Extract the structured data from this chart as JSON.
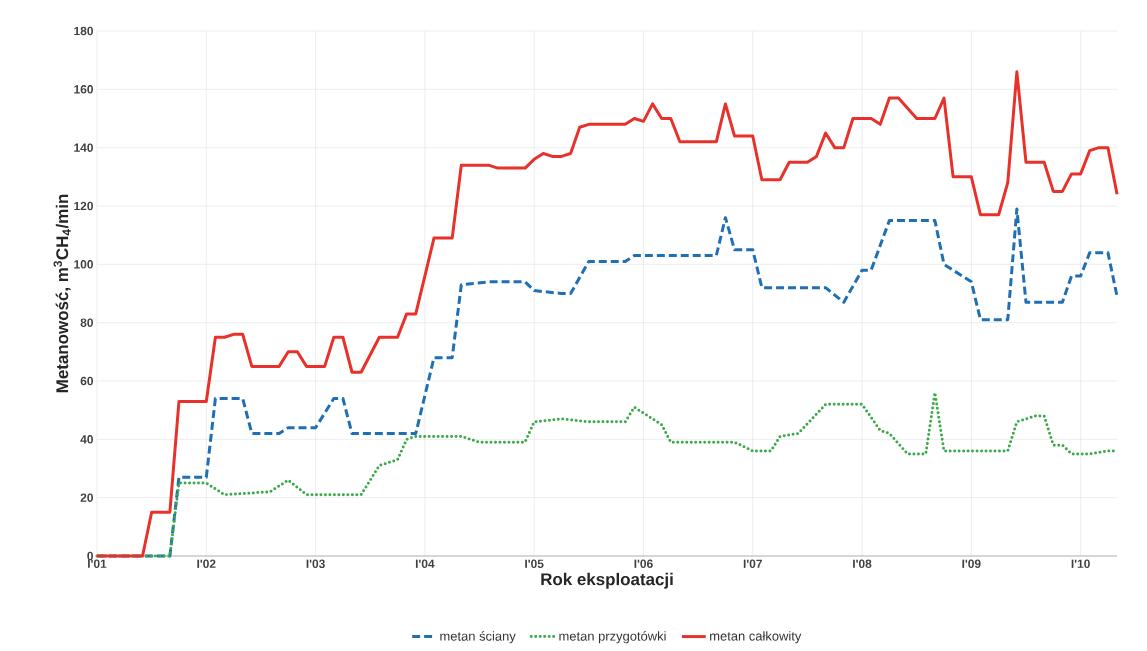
{
  "chart_data": {
    "type": "line",
    "xlabel": "Rok eksploatacji",
    "ylabel": "Metanowość, m$^{3}$CH$_{4}$/min",
    "xlim": [
      "2001-01",
      "2010-05"
    ],
    "xticks": [
      {
        "value": "2001-01",
        "label": "I'01"
      },
      {
        "value": "2002-01",
        "label": "I'02"
      },
      {
        "value": "2003-01",
        "label": "I'03"
      },
      {
        "value": "2004-01",
        "label": "I'04"
      },
      {
        "value": "2005-01",
        "label": "I'05"
      },
      {
        "value": "2006-01",
        "label": "I'06"
      },
      {
        "value": "2007-01",
        "label": "I'07"
      },
      {
        "value": "2008-01",
        "label": "I'08"
      },
      {
        "value": "2009-01",
        "label": "I'09"
      },
      {
        "value": "2010-01",
        "label": "I'10"
      }
    ],
    "ylim": [
      0,
      180
    ],
    "yticks": [
      0,
      20,
      40,
      60,
      80,
      100,
      120,
      140,
      160,
      180
    ],
    "grid": true,
    "legend": "bottom",
    "marker": "none",
    "series": [
      {
        "name": "metan ściany",
        "color": "#1f6fb5",
        "line_style": "dashed",
        "x": [
          "2001-01",
          "2001-09",
          "2001-10",
          "2002-01",
          "2002-02",
          "2002-05",
          "2002-06",
          "2002-09",
          "2002-10",
          "2003-01",
          "2003-03",
          "2003-04",
          "2003-05",
          "2003-12",
          "2004-02",
          "2004-04",
          "2004-05",
          "2004-08",
          "2004-12",
          "2005-01",
          "2005-04",
          "2005-05",
          "2005-07",
          "2005-11",
          "2005-12",
          "2006-09",
          "2006-10",
          "2006-11",
          "2007-01",
          "2007-02",
          "2007-09",
          "2007-11",
          "2008-01",
          "2008-02",
          "2008-04",
          "2008-09",
          "2008-10",
          "2009-01",
          "2009-02",
          "2009-05",
          "2009-06",
          "2009-07",
          "2009-11",
          "2009-12",
          "2010-01",
          "2010-02",
          "2010-04",
          "2010-05"
        ],
        "values": [
          0,
          0,
          27,
          27,
          54,
          54,
          42,
          42,
          44,
          44,
          54,
          54,
          42,
          42,
          68,
          68,
          93,
          94,
          94,
          91,
          90,
          90,
          101,
          101,
          103,
          103,
          116,
          105,
          105,
          92,
          92,
          87,
          98,
          98,
          115,
          115,
          100,
          94,
          81,
          81,
          119,
          87,
          87,
          96,
          96,
          104,
          104,
          89
        ]
      },
      {
        "name": "metan przygotówki",
        "color": "#3aaa48",
        "line_style": "dotted",
        "x": [
          "2001-01",
          "2001-09",
          "2001-10",
          "2002-01",
          "2002-03",
          "2002-08",
          "2002-10",
          "2002-12",
          "2003-06",
          "2003-08",
          "2003-10",
          "2003-11",
          "2003-12",
          "2004-05",
          "2004-07",
          "2004-12",
          "2005-01",
          "2005-04",
          "2005-07",
          "2005-11",
          "2005-12",
          "2006-03",
          "2006-04",
          "2006-11",
          "2007-01",
          "2007-03",
          "2007-04",
          "2007-06",
          "2007-09",
          "2008-01",
          "2008-03",
          "2008-04",
          "2008-06",
          "2008-08",
          "2008-09",
          "2008-10",
          "2009-05",
          "2009-06",
          "2009-08",
          "2009-09",
          "2009-10",
          "2009-11",
          "2009-12",
          "2010-02",
          "2010-04",
          "2010-05"
        ],
        "values": [
          0,
          0,
          25,
          25,
          21,
          22,
          26,
          21,
          21,
          31,
          33,
          40,
          41,
          41,
          39,
          39,
          46,
          47,
          46,
          46,
          51,
          45,
          39,
          39,
          36,
          36,
          41,
          42,
          52,
          52,
          43,
          42,
          35,
          35,
          56,
          36,
          36,
          46,
          48,
          48,
          38,
          38,
          35,
          35,
          36,
          36
        ]
      },
      {
        "name": "metan całkowity",
        "color": "#e8312a",
        "line_style": "solid",
        "x": [
          "2001-01",
          "2001-06",
          "2001-07",
          "2001-09",
          "2001-10",
          "2002-01",
          "2002-02",
          "2002-03",
          "2002-04",
          "2002-05",
          "2002-06",
          "2002-09",
          "2002-10",
          "2002-11",
          "2002-12",
          "2003-02",
          "2003-03",
          "2003-04",
          "2003-05",
          "2003-06",
          "2003-08",
          "2003-10",
          "2003-11",
          "2003-12",
          "2004-02",
          "2004-04",
          "2004-05",
          "2004-08",
          "2004-09",
          "2004-12",
          "2005-01",
          "2005-02",
          "2005-03",
          "2005-04",
          "2005-05",
          "2005-06",
          "2005-07",
          "2005-11",
          "2005-12",
          "2006-01",
          "2006-02",
          "2006-03",
          "2006-04",
          "2006-05",
          "2006-09",
          "2006-10",
          "2006-11",
          "2007-01",
          "2007-02",
          "2007-04",
          "2007-05",
          "2007-07",
          "2007-08",
          "2007-09",
          "2007-10",
          "2007-11",
          "2007-12",
          "2008-02",
          "2008-03",
          "2008-04",
          "2008-05",
          "2008-07",
          "2008-09",
          "2008-10",
          "2008-11",
          "2009-01",
          "2009-02",
          "2009-04",
          "2009-05",
          "2009-06",
          "2009-07",
          "2009-09",
          "2009-10",
          "2009-11",
          "2009-12",
          "2010-01",
          "2010-02",
          "2010-03",
          "2010-04",
          "2010-05"
        ],
        "values": [
          0,
          0,
          15,
          15,
          53,
          53,
          75,
          75,
          76,
          76,
          65,
          65,
          70,
          70,
          65,
          65,
          75,
          75,
          63,
          63,
          75,
          75,
          83,
          83,
          109,
          109,
          134,
          134,
          133,
          133,
          136,
          138,
          137,
          137,
          138,
          147,
          148,
          148,
          150,
          149,
          155,
          150,
          150,
          142,
          142,
          155,
          144,
          144,
          129,
          129,
          135,
          135,
          137,
          145,
          140,
          140,
          150,
          150,
          148,
          157,
          157,
          150,
          150,
          157,
          130,
          130,
          117,
          117,
          128,
          166,
          135,
          135,
          125,
          125,
          131,
          131,
          139,
          140,
          140,
          124
        ]
      }
    ]
  }
}
